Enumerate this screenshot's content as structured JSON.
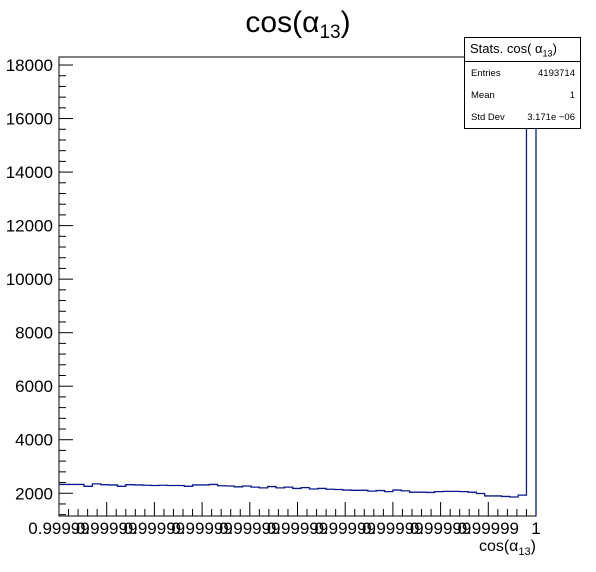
{
  "chart_data": {
    "type": "histogram",
    "title": "cos(α13)",
    "title_main": "cos(α",
    "title_sub": "13",
    "title_close": ")",
    "xlabel": "cos(α13)",
    "xlabel_main": "cos(α",
    "xlabel_sub": "13",
    "xlabel_close": ")",
    "ylabel": "",
    "xlim": [
      0.99999,
      1.0
    ],
    "ylim": [
      1150,
      18300
    ],
    "y_ticks": [
      2000,
      4000,
      6000,
      8000,
      10000,
      12000,
      14000,
      16000,
      18000
    ],
    "y_tick_labels": [
      "2000",
      "4000",
      "6000",
      "8000",
      "10000",
      "12000",
      "14000",
      "16000",
      "18000"
    ],
    "x_tick_labels": [
      "0.99999",
      "0.99999",
      "0.99999",
      "0.99999",
      "0.99999",
      "0.99999",
      "0.99999",
      "0.99999",
      "0.99999",
      "0.99999",
      "1"
    ],
    "bin_counts": [
      2330,
      2330,
      2330,
      2260,
      2350,
      2320,
      2310,
      2260,
      2320,
      2310,
      2300,
      2290,
      2300,
      2290,
      2290,
      2260,
      2310,
      2310,
      2330,
      2280,
      2270,
      2240,
      2270,
      2230,
      2200,
      2250,
      2200,
      2230,
      2180,
      2210,
      2160,
      2180,
      2150,
      2140,
      2120,
      2110,
      2110,
      2080,
      2100,
      2060,
      2120,
      2090,
      2040,
      2040,
      2030,
      2060,
      2070,
      2070,
      2060,
      2040,
      1990,
      1900,
      1900,
      1880,
      1860,
      1930,
      18050
    ],
    "line_color": "#0a1a8c",
    "grid": false,
    "legend": "none"
  },
  "stats": {
    "title_main": "Stats. cos( α",
    "title_sub": "13",
    "title_close": ")",
    "rows": [
      {
        "key": "Entries",
        "value": "4193714"
      },
      {
        "key": "Mean",
        "value": "1"
      },
      {
        "key": "Std Dev",
        "value": "3.171e −06"
      }
    ]
  }
}
